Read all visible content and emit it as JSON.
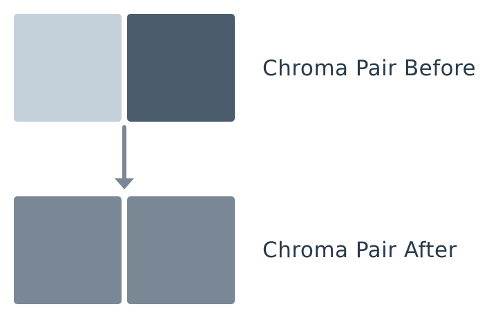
{
  "pairs": {
    "before": {
      "label": "Chroma Pair Before",
      "colors": [
        "#c4d0da",
        "#4b5d6d"
      ]
    },
    "after": {
      "label": "Chroma Pair After",
      "colors": [
        "#7a8895",
        "#7a8895"
      ]
    }
  },
  "arrow": {
    "icon": "arrow-down-icon",
    "color": "#7b8794"
  },
  "text_color": "#2a3a4a"
}
